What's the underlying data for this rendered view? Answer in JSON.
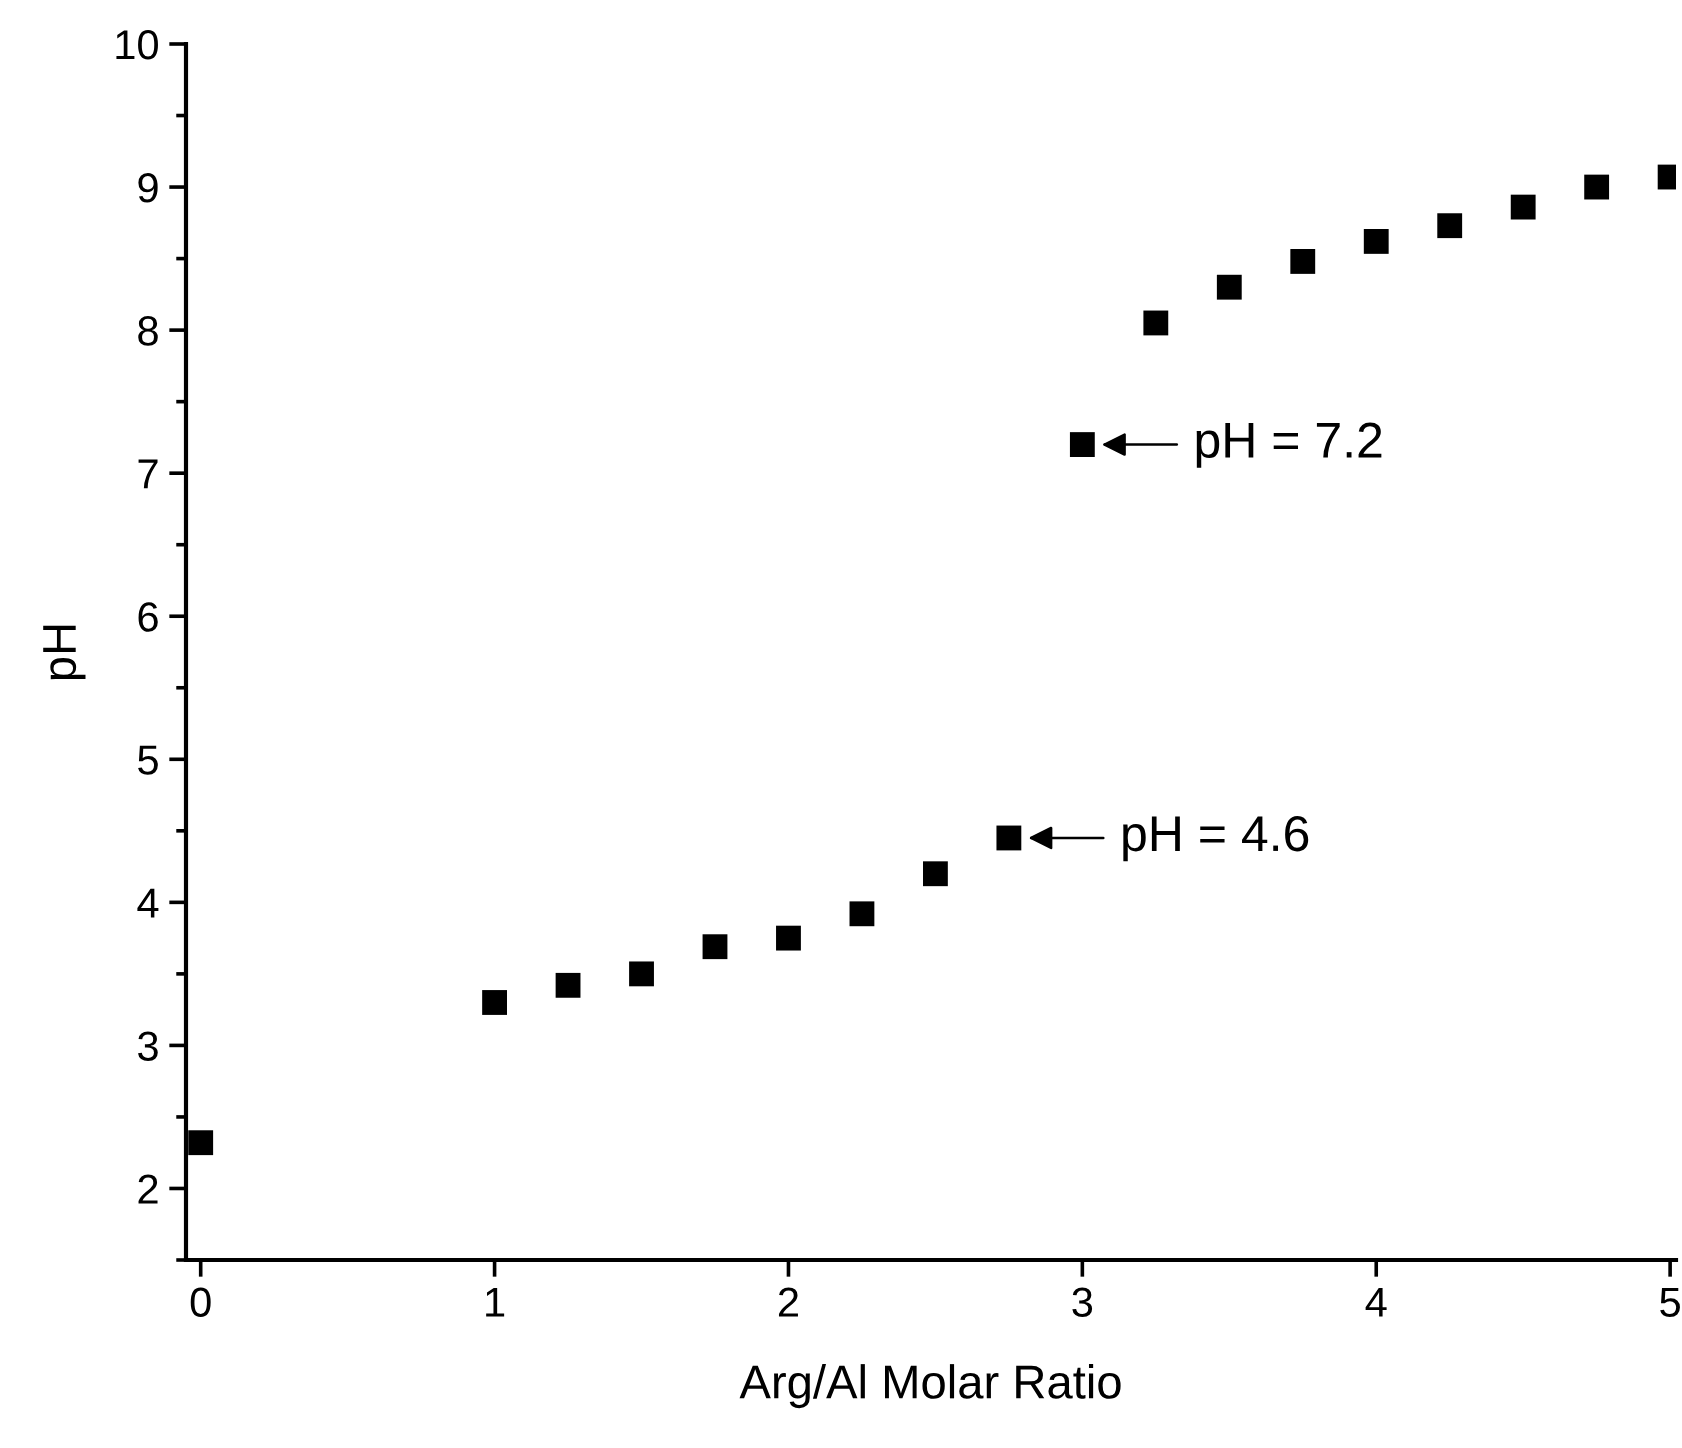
{
  "chart_data": {
    "type": "scatter",
    "xlabel": "Arg/Al Molar Ratio",
    "ylabel": "pH",
    "x": [
      0,
      1,
      1.25,
      1.5,
      1.75,
      2,
      2.25,
      2.5,
      2.75,
      3,
      3.25,
      3.5,
      3.75,
      4,
      4.25,
      4.5,
      4.75,
      5
    ],
    "series": [
      {
        "color": "#000000",
        "values": [
          2.32,
          3.3,
          3.42,
          3.5,
          3.69,
          3.75,
          3.92,
          4.2,
          4.45,
          7.2,
          8.05,
          8.3,
          8.48,
          8.62,
          8.73,
          8.86,
          9.0,
          9.07
        ]
      }
    ],
    "marker": "square",
    "xlim": [
      -0.05,
      5.02
    ],
    "ylim": [
      1.5,
      10
    ],
    "xticks": [
      0,
      1,
      2,
      3,
      4,
      5
    ],
    "yticks": [
      2,
      3,
      4,
      5,
      6,
      7,
      8,
      9,
      10
    ],
    "annotations": [
      {
        "text": "pH = 7.2",
        "x": 3,
        "y": 7.2
      },
      {
        "text": "pH = 4.6",
        "x": 2.75,
        "y": 4.45
      }
    ],
    "grid": false
  }
}
